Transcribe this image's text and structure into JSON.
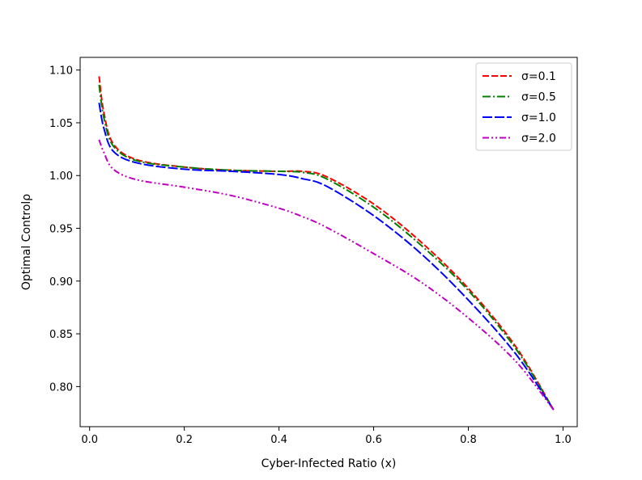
{
  "chart_data": {
    "type": "line",
    "title": "",
    "xlabel": "Cyber-Infected Ratio (x)",
    "ylabel": "Optimal Controlρ",
    "xlim": [
      -0.02,
      1.03
    ],
    "ylim": [
      0.762,
      1.112
    ],
    "xticks": [
      0.0,
      0.2,
      0.4,
      0.6,
      0.8,
      1.0
    ],
    "xtick_labels": [
      "0.0",
      "0.2",
      "0.4",
      "0.6",
      "0.8",
      "1.0"
    ],
    "yticks": [
      0.8,
      0.85,
      0.9,
      0.95,
      1.0,
      1.05,
      1.1
    ],
    "ytick_labels": [
      "0.80",
      "0.85",
      "0.90",
      "0.95",
      "1.00",
      "1.05",
      "1.10"
    ],
    "grid": false,
    "legend_position": "top-right",
    "x": [
      0.02,
      0.03,
      0.05,
      0.1,
      0.2,
      0.3,
      0.4,
      0.45,
      0.5,
      0.6,
      0.7,
      0.8,
      0.9,
      0.98
    ],
    "series": [
      {
        "name": "σ=0.1",
        "color": "#ff0000",
        "dash": "dashed",
        "values": [
          1.094,
          1.06,
          1.03,
          1.015,
          1.008,
          1.005,
          1.004,
          1.004,
          0.999,
          0.973,
          0.937,
          0.893,
          0.838,
          0.778
        ]
      },
      {
        "name": "σ=0.5",
        "color": "#008000",
        "dash": "dashdot",
        "values": [
          1.086,
          1.055,
          1.028,
          1.014,
          1.008,
          1.005,
          1.004,
          1.003,
          0.997,
          0.97,
          0.934,
          0.891,
          0.836,
          0.778
        ]
      },
      {
        "name": "σ=1.0",
        "color": "#0000ff",
        "dash": "longdash",
        "values": [
          1.069,
          1.045,
          1.023,
          1.012,
          1.006,
          1.004,
          1.001,
          0.997,
          0.99,
          0.962,
          0.926,
          0.882,
          0.831,
          0.778
        ]
      },
      {
        "name": "σ=2.0",
        "color": "#bf00bf",
        "dash": "dashdotdot",
        "values": [
          1.034,
          1.022,
          1.006,
          0.996,
          0.989,
          0.981,
          0.969,
          0.961,
          0.951,
          0.926,
          0.899,
          0.865,
          0.824,
          0.778
        ]
      }
    ]
  }
}
